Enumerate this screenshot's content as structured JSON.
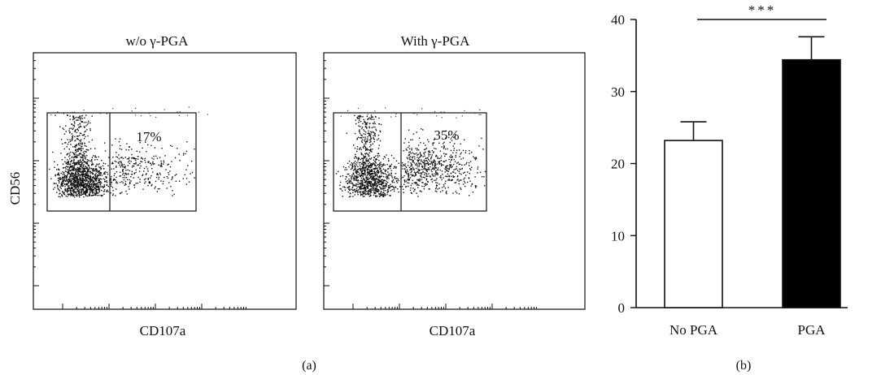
{
  "figure": {
    "panel_a_label": "(a)",
    "panel_b_label": "(b)"
  },
  "chart_data": [
    {
      "type": "scatter",
      "title": "w/o γ-PGA",
      "xlabel": "CD107a",
      "ylabel": "CD56",
      "gate_label": "17%",
      "gate_percent": 17,
      "log_scale": true,
      "grid": false
    },
    {
      "type": "scatter",
      "title": "With γ-PGA",
      "xlabel": "CD107a",
      "ylabel": "",
      "gate_label": "35%",
      "gate_percent": 35,
      "log_scale": true,
      "grid": false
    },
    {
      "type": "bar",
      "categories": [
        "No PGA",
        "PGA"
      ],
      "values": [
        23.2,
        34.4
      ],
      "errors": [
        2.6,
        3.2
      ],
      "bar_colors": [
        "#ffffff",
        "#000000"
      ],
      "ylim": [
        0,
        40
      ],
      "yticks": [
        "0",
        "10",
        "20",
        "30",
        "40"
      ],
      "significance": "***",
      "grid": false
    }
  ]
}
